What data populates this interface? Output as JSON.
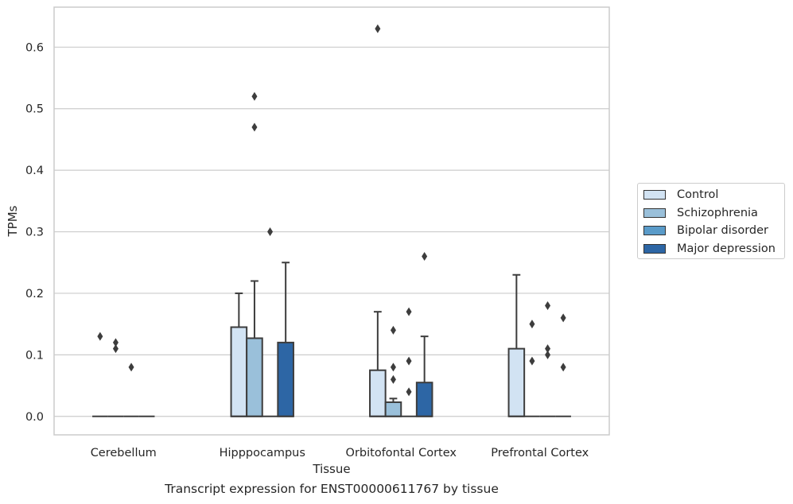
{
  "chart_data": {
    "type": "box",
    "caption": "Transcript expression for ENST00000611767 by tissue",
    "xlabel": "Tissue",
    "ylabel": "TPMs",
    "ylim": [
      -0.03,
      0.665
    ],
    "yticks": [
      0.0,
      0.1,
      0.2,
      0.3,
      0.4,
      0.5,
      0.6
    ],
    "ytick_labels": [
      "0.0",
      "0.1",
      "0.2",
      "0.3",
      "0.4",
      "0.5",
      "0.6"
    ],
    "grid": "horizontal",
    "legend_position": "right",
    "categories": [
      "Cerebellum",
      "Hipppocampus",
      "Orbitofontal Cortex",
      "Prefrontal Cortex"
    ],
    "series": [
      {
        "name": "Control",
        "color": "#d2e3f3",
        "boxes": [
          {
            "q1": 0,
            "median": 0,
            "q3": 0,
            "whisker_low": 0,
            "whisker_high": 0,
            "outliers": [
              0.13
            ]
          },
          {
            "q1": 0,
            "median": 0,
            "q3": 0.145,
            "whisker_low": 0,
            "whisker_high": 0.2,
            "outliers": []
          },
          {
            "q1": 0,
            "median": 0,
            "q3": 0.075,
            "whisker_low": 0,
            "whisker_high": 0.17,
            "outliers": [
              0.63
            ]
          },
          {
            "q1": 0,
            "median": 0,
            "q3": 0.11,
            "whisker_low": 0,
            "whisker_high": 0.23,
            "outliers": []
          }
        ]
      },
      {
        "name": "Schizophrenia",
        "color": "#9ac0da",
        "boxes": [
          {
            "q1": 0,
            "median": 0,
            "q3": 0,
            "whisker_low": 0,
            "whisker_high": 0,
            "outliers": [
              0.11,
              0.12
            ]
          },
          {
            "q1": 0,
            "median": 0,
            "q3": 0.127,
            "whisker_low": 0,
            "whisker_high": 0.22,
            "outliers": [
              0.47,
              0.52
            ]
          },
          {
            "q1": 0,
            "median": 0,
            "q3": 0.023,
            "whisker_low": 0,
            "whisker_high": 0.029,
            "outliers": [
              0.06,
              0.08,
              0.14
            ]
          },
          {
            "q1": 0,
            "median": 0,
            "q3": 0,
            "whisker_low": 0,
            "whisker_high": 0,
            "outliers": [
              0.09,
              0.15
            ]
          }
        ]
      },
      {
        "name": "Bipolar disorder",
        "color": "#5a9bc9",
        "boxes": [
          {
            "q1": 0,
            "median": 0,
            "q3": 0,
            "whisker_low": 0,
            "whisker_high": 0,
            "outliers": [
              0.08
            ]
          },
          {
            "q1": 0,
            "median": 0,
            "q3": 0,
            "whisker_low": 0,
            "whisker_high": 0,
            "outliers": [
              0.3
            ]
          },
          {
            "q1": 0,
            "median": 0,
            "q3": 0,
            "whisker_low": 0,
            "whisker_high": 0,
            "outliers": [
              0.04,
              0.09,
              0.17
            ]
          },
          {
            "q1": 0,
            "median": 0,
            "q3": 0,
            "whisker_low": 0,
            "whisker_high": 0,
            "outliers": [
              0.1,
              0.11,
              0.18
            ]
          }
        ]
      },
      {
        "name": "Major depression",
        "color": "#2d66a5",
        "boxes": [
          {
            "q1": 0,
            "median": 0,
            "q3": 0,
            "whisker_low": 0,
            "whisker_high": 0,
            "outliers": []
          },
          {
            "q1": 0,
            "median": 0,
            "q3": 0.12,
            "whisker_low": 0,
            "whisker_high": 0.25,
            "outliers": []
          },
          {
            "q1": 0,
            "median": 0,
            "q3": 0.055,
            "whisker_low": 0,
            "whisker_high": 0.13,
            "outliers": [
              0.26
            ]
          },
          {
            "q1": 0,
            "median": 0,
            "q3": 0,
            "whisker_low": 0,
            "whisker_high": 0,
            "outliers": [
              0.08,
              0.16
            ]
          }
        ]
      }
    ]
  }
}
